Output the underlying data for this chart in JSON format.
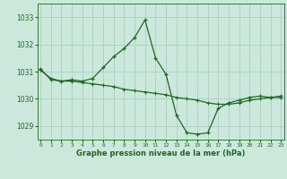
{
  "line1_x": [
    0,
    1,
    2,
    3,
    4,
    5,
    6,
    7,
    8,
    9,
    10,
    11,
    12,
    13,
    14,
    15,
    16,
    17,
    18,
    19,
    20,
    21,
    22,
    23
  ],
  "line1_y": [
    1031.1,
    1030.7,
    1030.65,
    1030.7,
    1030.65,
    1030.75,
    1031.15,
    1031.55,
    1031.85,
    1032.25,
    1032.9,
    1031.5,
    1030.9,
    1029.4,
    1028.75,
    1028.7,
    1028.75,
    1029.65,
    1029.85,
    1029.95,
    1030.05,
    1030.1,
    1030.05,
    1030.1
  ],
  "line2_x": [
    0,
    1,
    2,
    3,
    4,
    5,
    6,
    7,
    8,
    9,
    10,
    11,
    12,
    13,
    14,
    15,
    16,
    17,
    18,
    19,
    20,
    21,
    22,
    23
  ],
  "line2_y": [
    1031.05,
    1030.75,
    1030.65,
    1030.65,
    1030.6,
    1030.55,
    1030.5,
    1030.45,
    1030.35,
    1030.3,
    1030.25,
    1030.2,
    1030.15,
    1030.05,
    1030.0,
    1029.95,
    1029.85,
    1029.8,
    1029.8,
    1029.85,
    1029.95,
    1030.0,
    1030.05,
    1030.05
  ],
  "line_color": "#1a6b1a",
  "bg_color": "#cce8dc",
  "grid_color": "#aad4c4",
  "xlabel": "Graphe pression niveau de la mer (hPa)",
  "xticks": [
    0,
    1,
    2,
    3,
    4,
    5,
    6,
    7,
    8,
    9,
    10,
    11,
    12,
    13,
    14,
    15,
    16,
    17,
    18,
    19,
    20,
    21,
    22,
    23
  ],
  "yticks": [
    1029,
    1030,
    1031,
    1032,
    1033
  ],
  "ylim": [
    1028.5,
    1033.5
  ],
  "xlim": [
    -0.3,
    23.3
  ]
}
